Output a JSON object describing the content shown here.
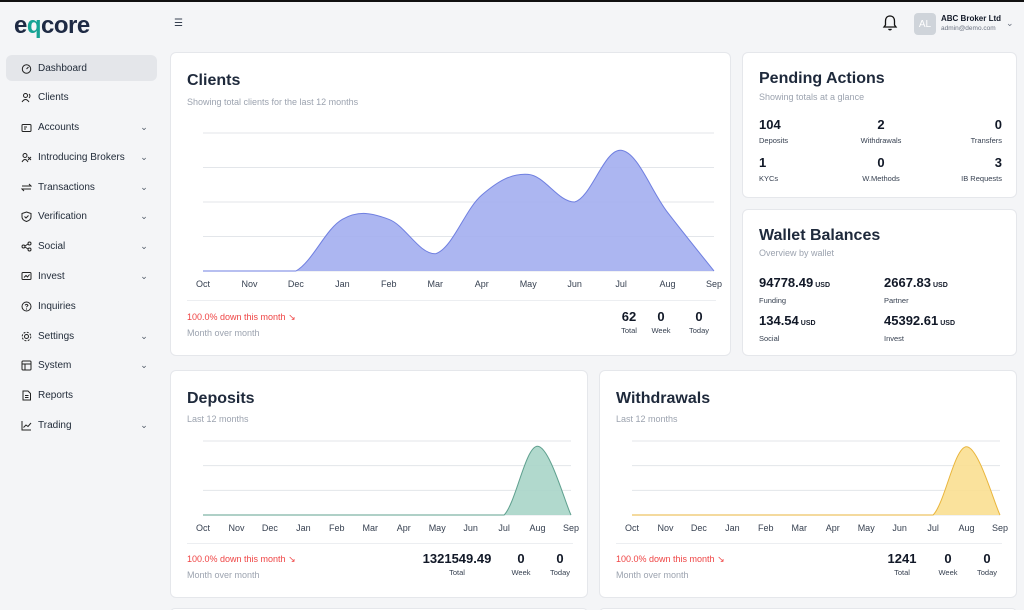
{
  "brand": {
    "logo_pre": "e",
    "logo_q": "q",
    "logo_post": "core"
  },
  "sidebar": {
    "items": [
      {
        "label": "Dashboard",
        "icon": "dashboard-icon",
        "active": true,
        "expandable": false
      },
      {
        "label": "Clients",
        "icon": "users-icon",
        "expandable": false
      },
      {
        "label": "Accounts",
        "icon": "wallet-icon",
        "expandable": true
      },
      {
        "label": "Introducing Brokers",
        "icon": "partners-icon",
        "expandable": true
      },
      {
        "label": "Transactions",
        "icon": "transfer-icon",
        "expandable": true
      },
      {
        "label": "Verification",
        "icon": "shield-icon",
        "expandable": true
      },
      {
        "label": "Social",
        "icon": "share-icon",
        "expandable": true
      },
      {
        "label": "Invest",
        "icon": "invest-icon",
        "expandable": true
      },
      {
        "label": "Inquiries",
        "icon": "help-icon",
        "expandable": false
      },
      {
        "label": "Settings",
        "icon": "gear-icon",
        "expandable": true
      },
      {
        "label": "System",
        "icon": "system-icon",
        "expandable": true
      },
      {
        "label": "Reports",
        "icon": "report-icon",
        "expandable": false
      },
      {
        "label": "Trading",
        "icon": "chart-line-icon",
        "expandable": true
      }
    ]
  },
  "header": {
    "user_initials": "AL",
    "user_name": "ABC Broker Ltd",
    "user_email": "admin@demo.com"
  },
  "clients_card": {
    "title": "Clients",
    "subtitle": "Showing total clients for the last 12 months",
    "change": "100.0% down this month",
    "change_sub": "Month over month",
    "stats": [
      {
        "value": "62",
        "label": "Total"
      },
      {
        "value": "0",
        "label": "Week"
      },
      {
        "value": "0",
        "label": "Today"
      }
    ]
  },
  "pending_actions": {
    "title": "Pending Actions",
    "subtitle": "Showing totals at a glance",
    "items": [
      {
        "value": "104",
        "label": "Deposits"
      },
      {
        "value": "2",
        "label": "Withdrawals"
      },
      {
        "value": "0",
        "label": "Transfers"
      },
      {
        "value": "1",
        "label": "KYCs"
      },
      {
        "value": "0",
        "label": "W.Methods"
      },
      {
        "value": "3",
        "label": "IB Requests"
      }
    ]
  },
  "wallet_balances": {
    "title": "Wallet Balances",
    "subtitle": "Overview by wallet",
    "items": [
      {
        "value": "94778.49",
        "unit": "USD",
        "label": "Funding"
      },
      {
        "value": "2667.83",
        "unit": "USD",
        "label": "Partner"
      },
      {
        "value": "134.54",
        "unit": "USD",
        "label": "Social"
      },
      {
        "value": "45392.61",
        "unit": "USD",
        "label": "Invest"
      }
    ]
  },
  "deposits_card": {
    "title": "Deposits",
    "subtitle": "Last 12 months",
    "change": "100.0% down this month",
    "change_sub": "Month over month",
    "stats": [
      {
        "value": "1321549.49",
        "label": "Total"
      },
      {
        "value": "0",
        "label": "Week"
      },
      {
        "value": "0",
        "label": "Today"
      }
    ]
  },
  "withdrawals_card": {
    "title": "Withdrawals",
    "subtitle": "Last 12 months",
    "change": "100.0% down this month",
    "change_sub": "Month over month",
    "stats": [
      {
        "value": "1241",
        "label": "Total"
      },
      {
        "value": "0",
        "label": "Week"
      },
      {
        "value": "0",
        "label": "Today"
      }
    ]
  },
  "chart_data": [
    {
      "type": "area",
      "categories": [
        "Oct",
        "Nov",
        "Dec",
        "Jan",
        "Feb",
        "Mar",
        "Apr",
        "May",
        "Jun",
        "Jul",
        "Aug",
        "Sep"
      ],
      "values": [
        0,
        0,
        0,
        15,
        15,
        5,
        22,
        28,
        20,
        35,
        17,
        0
      ],
      "ylim": [
        0,
        40
      ],
      "grid": true,
      "color": "#a3aef0",
      "stroke": "#6f7fe0"
    },
    {
      "type": "area",
      "categories": [
        "Oct",
        "Nov",
        "Dec",
        "Jan",
        "Feb",
        "Mar",
        "Apr",
        "May",
        "Jun",
        "Jul",
        "Aug",
        "Sep"
      ],
      "values": [
        0,
        0,
        0,
        0,
        0,
        0,
        0,
        0,
        0,
        0,
        1300000,
        0
      ],
      "ylim": [
        0,
        1400000
      ],
      "grid": true,
      "color": "#a8d5c8",
      "stroke": "#5fa08f"
    },
    {
      "type": "area",
      "categories": [
        "Oct",
        "Nov",
        "Dec",
        "Jan",
        "Feb",
        "Mar",
        "Apr",
        "May",
        "Jun",
        "Jul",
        "Aug",
        "Sep"
      ],
      "values": [
        0,
        0,
        0,
        0,
        0,
        0,
        0,
        0,
        0,
        0,
        1200,
        0
      ],
      "ylim": [
        0,
        1300
      ],
      "grid": true,
      "color": "#f9df91",
      "stroke": "#e9b53c"
    }
  ]
}
